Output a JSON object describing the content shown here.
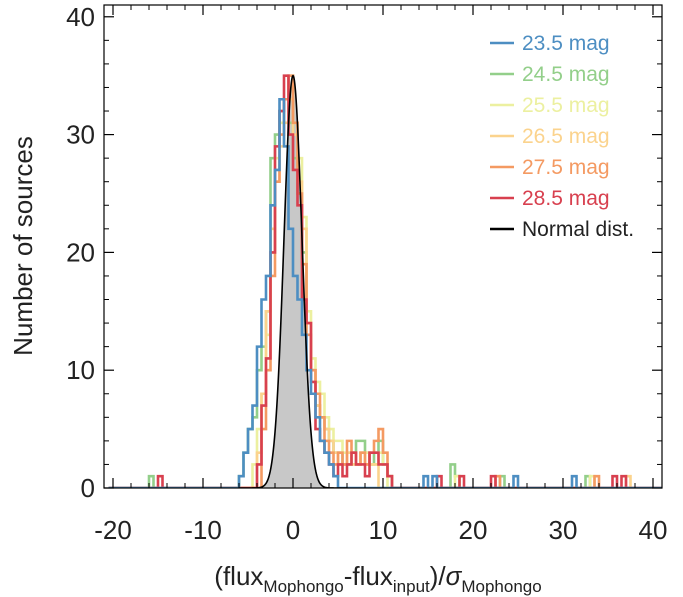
{
  "chart_data": {
    "type": "step-histogram",
    "title": "",
    "xlabel": {
      "parts": [
        {
          "t": "(flux",
          "sub": false
        },
        {
          "t": "Mophongo",
          "sub": true
        },
        {
          "t": "-flux",
          "sub": false
        },
        {
          "t": "input",
          "sub": true
        },
        {
          "t": ")/",
          "sub": false
        },
        {
          "t": "σ",
          "sub": false,
          "italic": true
        },
        {
          "t": "Mophongo",
          "sub": true
        }
      ]
    },
    "ylabel": "Number of sources",
    "xlim": [
      -21,
      41
    ],
    "ylim": [
      0,
      41
    ],
    "xticks": [
      -20,
      -10,
      0,
      10,
      20,
      30,
      40
    ],
    "xtick_labels": [
      "-20",
      "-10",
      "0",
      "10",
      "20",
      "30",
      "40"
    ],
    "yticks": [
      0,
      10,
      20,
      30,
      40
    ],
    "ytick_labels": [
      "0",
      "10",
      "20",
      "30",
      "40"
    ],
    "x_minor_step": 2,
    "y_minor_step": 2,
    "bin_start": -16,
    "bin_width": 0.5,
    "grid": false,
    "legend_position": "top-right",
    "legend": [
      {
        "label": "23.5 mag",
        "color": "#4d8ec2"
      },
      {
        "label": "24.5 mag",
        "color": "#93cf8a"
      },
      {
        "label": "25.5 mag",
        "color": "#ecf0a0"
      },
      {
        "label": "26.5 mag",
        "color": "#fbd38d"
      },
      {
        "label": "27.5 mag",
        "color": "#f49a62"
      },
      {
        "label": "28.5 mag",
        "color": "#d8404f"
      },
      {
        "label": "Normal dist.",
        "color": "#000000"
      }
    ],
    "series": [
      {
        "name": "24.5 mag",
        "color": "#93cf8a",
        "bins": [
          [
            -16,
            1
          ],
          [
            -6,
            1
          ],
          [
            -5.5,
            3
          ],
          [
            -5,
            5
          ],
          [
            -4.5,
            6
          ],
          [
            -4,
            10
          ],
          [
            -3.5,
            12
          ],
          [
            -3,
            15
          ],
          [
            -2.5,
            28
          ],
          [
            -2,
            30
          ],
          [
            -1.5,
            32
          ],
          [
            -1,
            33
          ],
          [
            -0.5,
            31
          ],
          [
            0,
            28
          ],
          [
            0.5,
            25
          ],
          [
            1,
            20
          ],
          [
            1.5,
            14
          ],
          [
            2,
            10
          ],
          [
            2.5,
            7
          ],
          [
            3,
            6
          ],
          [
            3.5,
            5
          ],
          [
            4,
            4
          ],
          [
            4.5,
            3
          ],
          [
            5,
            3
          ],
          [
            5.5,
            2
          ],
          [
            6,
            2
          ],
          [
            6.5,
            3
          ],
          [
            7,
            4
          ],
          [
            7.5,
            4
          ],
          [
            8,
            3
          ],
          [
            8.5,
            2
          ],
          [
            9,
            3
          ],
          [
            9.5,
            4
          ],
          [
            10,
            2
          ],
          [
            10.5,
            1
          ],
          [
            17.5,
            2
          ],
          [
            18,
            1
          ],
          [
            23,
            1
          ],
          [
            32.5,
            1
          ]
        ]
      },
      {
        "name": "25.5 mag",
        "color": "#ecf0a0",
        "bins": [
          [
            -4.5,
            2
          ],
          [
            -4,
            5
          ],
          [
            -3.5,
            8
          ],
          [
            -3,
            13
          ],
          [
            -2.5,
            20
          ],
          [
            -2,
            28
          ],
          [
            -1.5,
            31
          ],
          [
            -1,
            33
          ],
          [
            -0.5,
            35
          ],
          [
            0,
            31
          ],
          [
            0.5,
            28
          ],
          [
            1,
            23
          ],
          [
            1.5,
            15
          ],
          [
            2,
            11
          ],
          [
            2.5,
            9
          ],
          [
            3,
            8
          ],
          [
            3.5,
            6
          ],
          [
            4,
            5
          ],
          [
            4.5,
            4
          ],
          [
            5,
            4
          ],
          [
            5.5,
            3
          ],
          [
            6,
            3
          ],
          [
            6.5,
            2
          ],
          [
            7,
            2
          ],
          [
            7.5,
            3
          ],
          [
            8,
            3
          ],
          [
            8.5,
            2
          ],
          [
            9,
            2
          ],
          [
            9.5,
            3
          ],
          [
            10,
            2
          ],
          [
            18,
            1
          ],
          [
            33,
            1
          ]
        ]
      },
      {
        "name": "26.5 mag",
        "color": "#fbd38d",
        "bins": [
          [
            -4,
            3
          ],
          [
            -3.5,
            8
          ],
          [
            -3,
            15
          ],
          [
            -2.5,
            22
          ],
          [
            -2,
            26
          ],
          [
            -1.5,
            29
          ],
          [
            -1,
            31
          ],
          [
            -0.5,
            33
          ],
          [
            0,
            30
          ],
          [
            0.5,
            26
          ],
          [
            1,
            22
          ],
          [
            1.5,
            14
          ],
          [
            2,
            10
          ],
          [
            2.5,
            7
          ],
          [
            3,
            6
          ],
          [
            3.5,
            5
          ],
          [
            4,
            4
          ],
          [
            4.5,
            3
          ],
          [
            5,
            2
          ],
          [
            5.5,
            2
          ],
          [
            6,
            3
          ],
          [
            6.5,
            2
          ],
          [
            7,
            2
          ],
          [
            7.5,
            3
          ],
          [
            8,
            2
          ],
          [
            8.5,
            2
          ],
          [
            9,
            2
          ],
          [
            37,
            1
          ]
        ]
      },
      {
        "name": "27.5 mag",
        "color": "#f49a62",
        "bins": [
          [
            -3.5,
            5
          ],
          [
            -3,
            10
          ],
          [
            -2.5,
            18
          ],
          [
            -2,
            26
          ],
          [
            -1.5,
            30
          ],
          [
            -1,
            33
          ],
          [
            -0.5,
            35
          ],
          [
            0,
            31
          ],
          [
            0.5,
            25
          ],
          [
            1,
            19
          ],
          [
            1.5,
            13
          ],
          [
            2,
            10
          ],
          [
            2.5,
            8
          ],
          [
            3,
            6
          ],
          [
            3.5,
            4
          ],
          [
            4,
            3
          ],
          [
            4.5,
            2
          ],
          [
            5,
            3
          ],
          [
            5.5,
            2
          ],
          [
            6,
            4
          ],
          [
            6.5,
            3
          ],
          [
            7,
            2
          ],
          [
            7.5,
            3
          ],
          [
            8,
            2
          ],
          [
            8.5,
            3
          ],
          [
            9,
            4
          ],
          [
            9.5,
            5
          ],
          [
            10,
            3
          ],
          [
            10.5,
            1
          ],
          [
            22.5,
            1
          ],
          [
            33.5,
            1
          ]
        ]
      },
      {
        "name": "28.5 mag",
        "color": "#d8404f",
        "bins": [
          [
            -15,
            1
          ],
          [
            -4,
            2
          ],
          [
            -3.5,
            7
          ],
          [
            -3,
            11
          ],
          [
            -2.5,
            20
          ],
          [
            -2,
            29
          ],
          [
            -1.5,
            32
          ],
          [
            -1,
            35
          ],
          [
            -0.5,
            30
          ],
          [
            0,
            27
          ],
          [
            0.5,
            24
          ],
          [
            1,
            16
          ],
          [
            1.5,
            14
          ],
          [
            2,
            9
          ],
          [
            2.5,
            5
          ],
          [
            3,
            4
          ],
          [
            3.5,
            3
          ],
          [
            4,
            2
          ],
          [
            4.5,
            1
          ],
          [
            5,
            2
          ],
          [
            5.5,
            1
          ],
          [
            6,
            2
          ],
          [
            6.5,
            3
          ],
          [
            7,
            2
          ],
          [
            7.5,
            2
          ],
          [
            8,
            1
          ],
          [
            8.5,
            3
          ],
          [
            9,
            3
          ],
          [
            9.5,
            2
          ],
          [
            10,
            2
          ],
          [
            10.5,
            1
          ],
          [
            16,
            1
          ],
          [
            18.5,
            1
          ],
          [
            22,
            1
          ],
          [
            35.5,
            1
          ],
          [
            36.5,
            1
          ]
        ]
      },
      {
        "name": "23.5 mag",
        "color": "#4d8ec2",
        "bins": [
          [
            -6,
            1
          ],
          [
            -5.5,
            3
          ],
          [
            -5,
            5
          ],
          [
            -4.5,
            7
          ],
          [
            -4,
            12
          ],
          [
            -3.5,
            16
          ],
          [
            -3,
            18
          ],
          [
            -2.5,
            24
          ],
          [
            -2,
            27
          ],
          [
            -1.5,
            33
          ],
          [
            -1,
            29
          ],
          [
            -0.5,
            22
          ],
          [
            0,
            18
          ],
          [
            0.5,
            16
          ],
          [
            1,
            13
          ],
          [
            1.5,
            10
          ],
          [
            2,
            8
          ],
          [
            2.5,
            6
          ],
          [
            3,
            4
          ],
          [
            3.5,
            3
          ],
          [
            4,
            2
          ],
          [
            4.5,
            1
          ],
          [
            14.5,
            1
          ],
          [
            15.5,
            1
          ],
          [
            24.5,
            1
          ],
          [
            31,
            1
          ]
        ]
      }
    ],
    "normal_curve": {
      "name": "Normal dist.",
      "peak": 35,
      "sigma": 1,
      "color": "#000000",
      "fill": "#c8c8c8"
    }
  }
}
